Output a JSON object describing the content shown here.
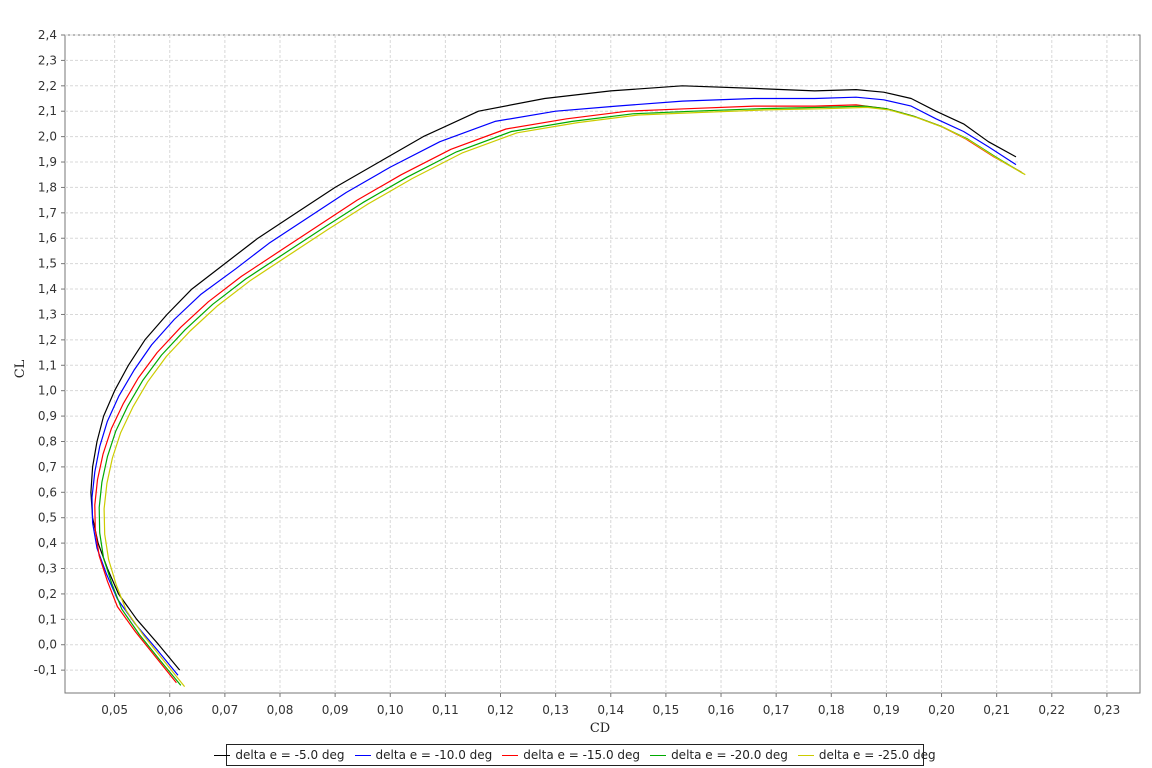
{
  "chart_data": {
    "type": "line",
    "title": "",
    "xlabel": "CD",
    "ylabel": "CL",
    "xlim": [
      0.041,
      0.236
    ],
    "ylim": [
      -0.19,
      2.4
    ],
    "grid": true,
    "legend_position": "bottom",
    "x_ticks": [
      "0,05",
      "0,06",
      "0,07",
      "0,08",
      "0,09",
      "0,10",
      "0,11",
      "0,12",
      "0,13",
      "0,14",
      "0,15",
      "0,16",
      "0,17",
      "0,18",
      "0,19",
      "0,20",
      "0,21",
      "0,22",
      "0,23"
    ],
    "y_ticks": [
      "-0,1",
      "0,0",
      "0,1",
      "0,2",
      "0,3",
      "0,4",
      "0,5",
      "0,6",
      "0,7",
      "0,8",
      "0,9",
      "1,0",
      "1,1",
      "1,2",
      "1,3",
      "1,4",
      "1,5",
      "1,6",
      "1,7",
      "1,8",
      "1,9",
      "2,0",
      "2,1",
      "2,2",
      "2,3",
      "2,4"
    ],
    "series": [
      {
        "name": "delta e = -5.0 deg",
        "color": "#000000",
        "x": [
          0.0618,
          0.058,
          0.054,
          0.0507,
          0.0487,
          0.047,
          0.046,
          0.0457,
          0.046,
          0.0468,
          0.048,
          0.05,
          0.0525,
          0.0555,
          0.0595,
          0.064,
          0.07,
          0.076,
          0.083,
          0.09,
          0.098,
          0.106,
          0.116,
          0.128,
          0.14,
          0.153,
          0.166,
          0.177,
          0.1845,
          0.1895,
          0.1945,
          0.199,
          0.204,
          0.2085,
          0.2135
        ],
        "y": [
          -0.1,
          0.0,
          0.1,
          0.2,
          0.3,
          0.4,
          0.5,
          0.6,
          0.7,
          0.8,
          0.9,
          1.0,
          1.1,
          1.2,
          1.3,
          1.4,
          1.5,
          1.6,
          1.7,
          1.8,
          1.9,
          2.0,
          2.1,
          2.15,
          2.18,
          2.2,
          2.19,
          2.18,
          2.185,
          2.175,
          2.15,
          2.1,
          2.05,
          1.98,
          1.92
        ]
      },
      {
        "name": "delta e = -10.0 deg",
        "color": "#0000ff",
        "x": [
          0.0615,
          0.0577,
          0.0538,
          0.0505,
          0.0485,
          0.0468,
          0.046,
          0.0459,
          0.0464,
          0.0473,
          0.0487,
          0.0508,
          0.0535,
          0.0567,
          0.0608,
          0.0657,
          0.072,
          0.078,
          0.085,
          0.092,
          0.1,
          0.109,
          0.119,
          0.13,
          0.141,
          0.153,
          0.166,
          0.177,
          0.1845,
          0.1895,
          0.1945,
          0.199,
          0.204,
          0.2085,
          0.2135
        ],
        "y": [
          -0.12,
          -0.02,
          0.08,
          0.18,
          0.28,
          0.38,
          0.48,
          0.58,
          0.68,
          0.78,
          0.88,
          0.98,
          1.08,
          1.18,
          1.28,
          1.38,
          1.48,
          1.58,
          1.68,
          1.78,
          1.88,
          1.98,
          2.06,
          2.1,
          2.12,
          2.14,
          2.15,
          2.15,
          2.155,
          2.145,
          2.12,
          2.07,
          2.02,
          1.96,
          1.89
        ]
      },
      {
        "name": "delta e = -15.0 deg",
        "color": "#ff0000",
        "x": [
          0.0612,
          0.0575,
          0.0538,
          0.0505,
          0.0487,
          0.0472,
          0.0465,
          0.0464,
          0.0469,
          0.0479,
          0.0494,
          0.0516,
          0.0543,
          0.0577,
          0.062,
          0.067,
          0.073,
          0.08,
          0.087,
          0.094,
          0.102,
          0.111,
          0.121,
          0.132,
          0.143,
          0.154,
          0.166,
          0.177,
          0.1845,
          0.19,
          0.195,
          0.2,
          0.2045,
          0.2095,
          0.2145
        ],
        "y": [
          -0.15,
          -0.05,
          0.05,
          0.15,
          0.25,
          0.35,
          0.45,
          0.55,
          0.65,
          0.75,
          0.85,
          0.95,
          1.05,
          1.15,
          1.25,
          1.35,
          1.45,
          1.55,
          1.65,
          1.75,
          1.85,
          1.95,
          2.03,
          2.07,
          2.1,
          2.11,
          2.12,
          2.12,
          2.125,
          2.11,
          2.08,
          2.04,
          1.99,
          1.92,
          1.86
        ]
      },
      {
        "name": "delta e = -20.0 deg",
        "color": "#00aa00",
        "x": [
          0.062,
          0.0582,
          0.0545,
          0.0513,
          0.0495,
          0.048,
          0.0473,
          0.0472,
          0.0477,
          0.0487,
          0.0502,
          0.0524,
          0.0551,
          0.0585,
          0.0628,
          0.0678,
          0.0738,
          0.0808,
          0.0878,
          0.095,
          0.103,
          0.112,
          0.122,
          0.133,
          0.144,
          0.155,
          0.167,
          0.178,
          0.186,
          0.19,
          0.195,
          0.2,
          0.2048,
          0.2098,
          0.2148
        ],
        "y": [
          -0.16,
          -0.06,
          0.04,
          0.14,
          0.24,
          0.34,
          0.44,
          0.54,
          0.64,
          0.74,
          0.84,
          0.94,
          1.04,
          1.14,
          1.24,
          1.34,
          1.44,
          1.54,
          1.64,
          1.74,
          1.84,
          1.94,
          2.02,
          2.06,
          2.09,
          2.1,
          2.11,
          2.115,
          2.12,
          2.11,
          2.08,
          2.04,
          1.99,
          1.92,
          1.855
        ]
      },
      {
        "name": "delta e = -25.0 deg",
        "color": "#cccc00",
        "x": [
          0.0627,
          0.059,
          0.0553,
          0.0521,
          0.0503,
          0.0489,
          0.0482,
          0.0481,
          0.0486,
          0.0496,
          0.0511,
          0.0533,
          0.056,
          0.0594,
          0.0637,
          0.0687,
          0.0747,
          0.0817,
          0.0887,
          0.096,
          0.104,
          0.113,
          0.123,
          0.134,
          0.145,
          0.156,
          0.168,
          0.179,
          0.1865,
          0.1905,
          0.1955,
          0.2005,
          0.205,
          0.21,
          0.2152
        ],
        "y": [
          -0.165,
          -0.065,
          0.035,
          0.135,
          0.235,
          0.335,
          0.435,
          0.535,
          0.635,
          0.735,
          0.835,
          0.935,
          1.035,
          1.135,
          1.235,
          1.335,
          1.435,
          1.535,
          1.635,
          1.735,
          1.835,
          1.935,
          2.015,
          2.055,
          2.085,
          2.095,
          2.105,
          2.11,
          2.115,
          2.105,
          2.075,
          2.035,
          1.985,
          1.915,
          1.85
        ]
      }
    ]
  }
}
